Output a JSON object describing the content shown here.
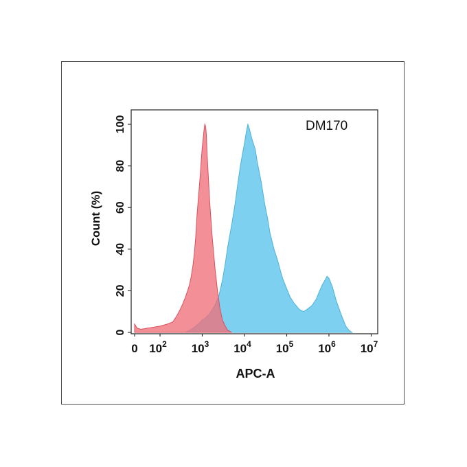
{
  "chart_data": {
    "type": "area",
    "annotation": "DM170",
    "xlabel": "APC-A",
    "ylabel": "Count  (%)",
    "x_scale": "biexponential",
    "xlim": [
      0,
      10000000
    ],
    "ylim": [
      0,
      110
    ],
    "x_ticks": [
      {
        "value": 0,
        "base": "0",
        "exp": ""
      },
      {
        "value": 100,
        "base": "10",
        "exp": "2"
      },
      {
        "value": 1000,
        "base": "10",
        "exp": "3"
      },
      {
        "value": 10000,
        "base": "10",
        "exp": "4"
      },
      {
        "value": 100000,
        "base": "10",
        "exp": "5"
      },
      {
        "value": 1000000,
        "base": "10",
        "exp": "6"
      },
      {
        "value": 10000000,
        "base": "10",
        "exp": "7"
      }
    ],
    "y_ticks": [
      0,
      20,
      40,
      60,
      80,
      100
    ],
    "grid": false,
    "legend": "none",
    "series": [
      {
        "color": "#f0707a",
        "x": [
          0,
          10,
          25,
          50,
          100,
          150,
          200,
          250,
          300,
          350,
          400,
          450,
          500,
          550,
          600,
          650,
          700,
          750,
          800,
          850,
          900,
          950,
          1000,
          1050,
          1100,
          1150,
          1200,
          1250,
          1300,
          1400,
          1500,
          1700,
          2000,
          2300,
          2600,
          3000,
          3500,
          4000,
          5000
        ],
        "y": [
          4,
          2,
          1.5,
          2,
          3,
          4,
          5,
          8,
          11,
          14,
          17,
          20,
          23,
          27,
          32,
          38,
          46,
          56,
          63,
          70,
          76,
          83,
          89,
          93,
          97,
          100,
          99,
          95,
          86,
          74,
          63,
          47,
          31,
          20,
          12,
          6,
          3,
          1,
          0
        ]
      },
      {
        "color": "#7dd0ef",
        "x": [
          400,
          500,
          600,
          700,
          800,
          900,
          1000,
          1200,
          1500,
          2000,
          2500,
          3000,
          3500,
          4000,
          5000,
          6000,
          7000,
          8000,
          9000,
          10000,
          11000,
          12000,
          13000,
          15000,
          18000,
          20000,
          25000,
          30000,
          35000,
          40000,
          50000,
          60000,
          70000,
          80000,
          100000,
          120000,
          150000,
          200000,
          250000,
          300000,
          400000,
          500000,
          600000,
          700000,
          800000,
          900000,
          1000000,
          1200000,
          1500000,
          2000000,
          2500000,
          3000000,
          3500000
        ],
        "y": [
          0,
          1,
          2,
          3,
          4,
          5,
          6,
          7,
          9,
          13,
          18,
          25,
          33,
          41,
          52,
          62,
          72,
          80,
          86,
          91,
          96,
          100,
          98,
          93,
          88,
          82,
          72,
          62,
          55,
          48,
          40,
          35,
          30,
          26,
          21,
          17,
          14,
          11,
          10,
          11,
          13,
          16,
          20,
          23,
          25,
          27,
          26,
          22,
          15,
          8,
          3,
          1,
          0
        ]
      }
    ]
  }
}
